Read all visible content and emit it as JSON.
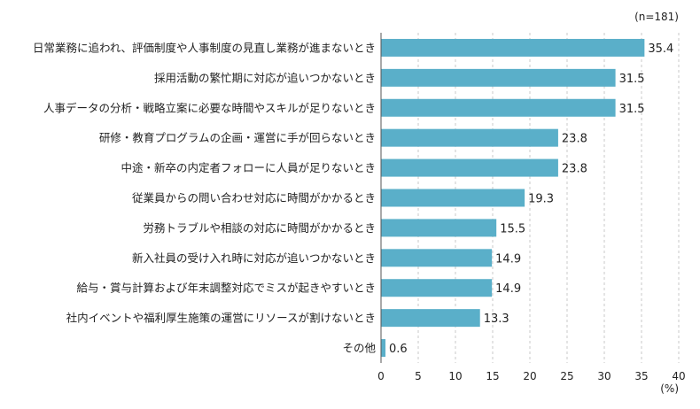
{
  "chart_data": {
    "type": "bar",
    "orientation": "horizontal",
    "note": "(n=181)",
    "unit_label": "(%)",
    "categories": [
      "日常業務に追われ、評価制度や人事制度の見直し業務が進まないとき",
      "採用活動の繁忙期に対応が追いつかないとき",
      "人事データの分析・戦略立案に必要な時間やスキルが足りないとき",
      "研修・教育プログラムの企画・運営に手が回らないとき",
      "中途・新卒の内定者フォローに人員が足りないとき",
      "従業員からの問い合わせ対応に時間がかかるとき",
      "労務トラブルや相談の対応に時間がかかるとき",
      "新入社員の受け入れ時に対応が追いつかないとき",
      "給与・賞与計算および年末調整対応でミスが起きやすいとき",
      "社内イベントや福利厚生施策の運営にリソースが割けないとき",
      "その他"
    ],
    "values": [
      35.4,
      31.5,
      31.5,
      23.8,
      23.8,
      19.3,
      15.5,
      14.9,
      14.9,
      13.3,
      0.6
    ],
    "value_labels": [
      "35.4",
      "31.5",
      "31.5",
      "23.8",
      "23.8",
      "19.3",
      "15.5",
      "14.9",
      "14.9",
      "13.3",
      "0.6"
    ],
    "xlim": [
      0,
      40
    ],
    "ticks": [
      "0",
      "5",
      "10",
      "15",
      "20",
      "25",
      "30",
      "35",
      "40"
    ],
    "grid": "vertical dashed",
    "bar_color": "#5aafc9"
  }
}
